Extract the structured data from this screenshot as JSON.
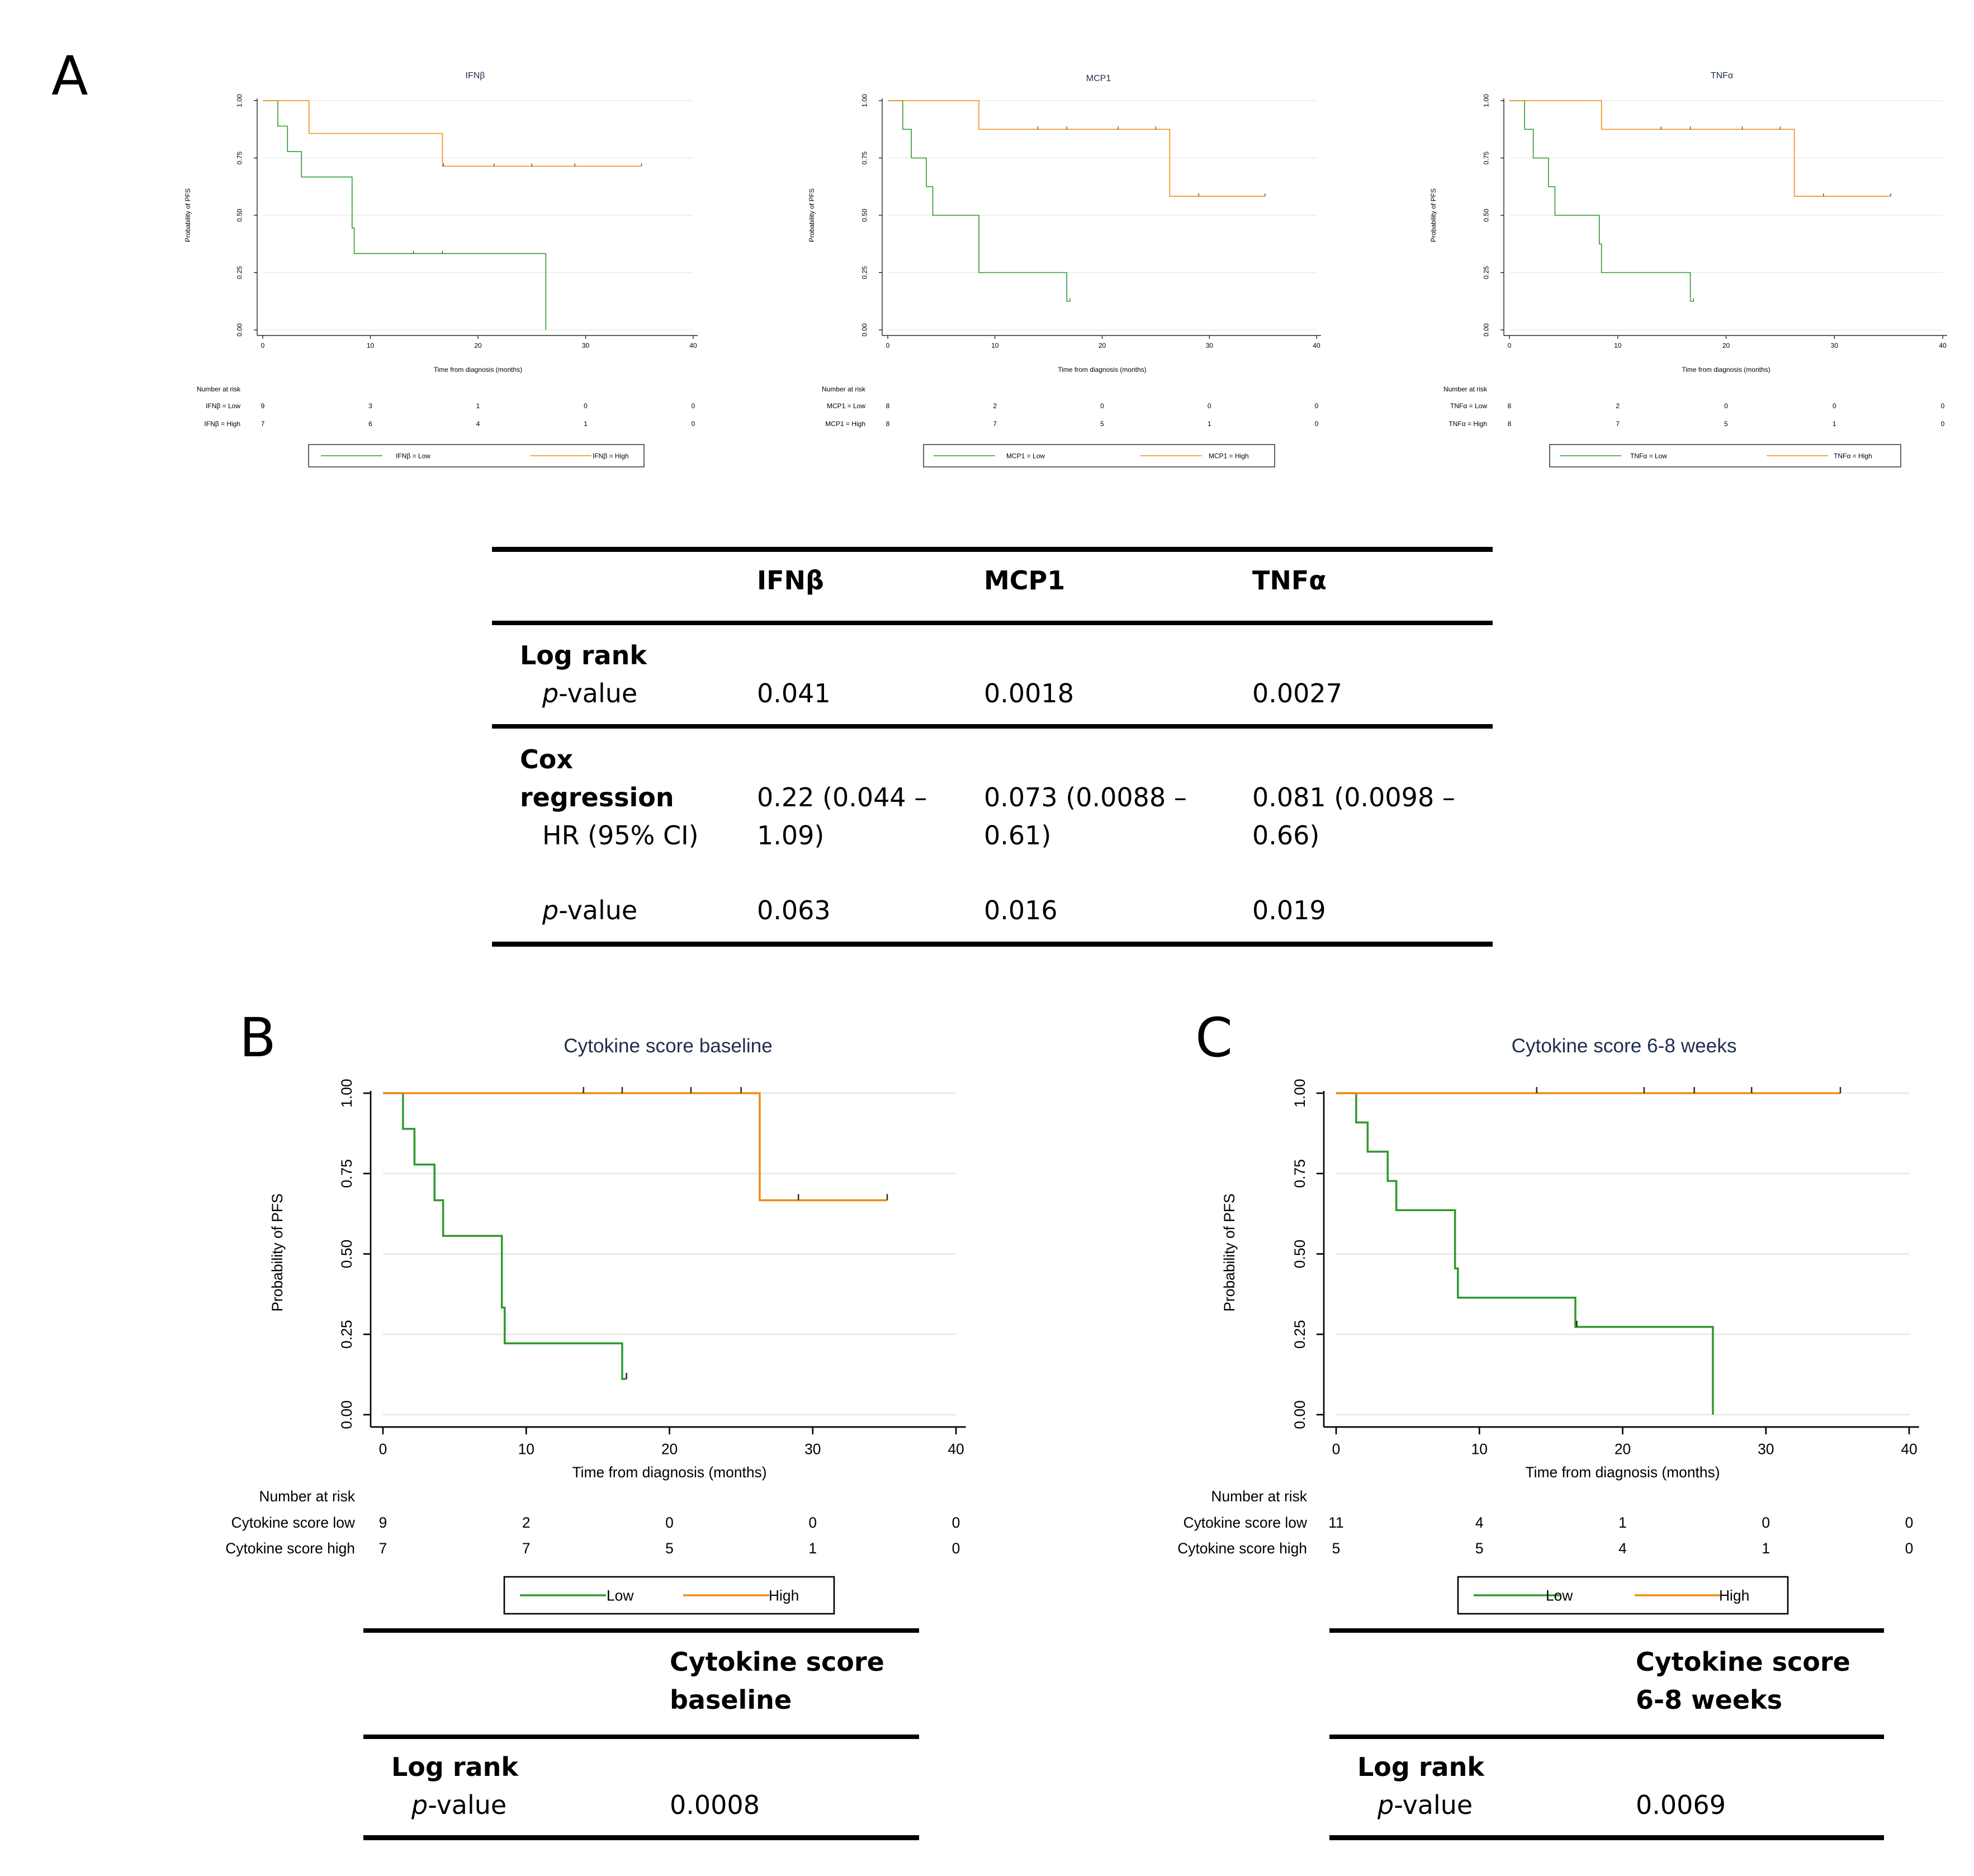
{
  "panel_labels": {
    "a": "A",
    "b": "B",
    "c": "C"
  },
  "chart_data": [
    {
      "type": "line",
      "title": "IFNβ",
      "xlabel": "Time from diagnosis (months)",
      "ylabel": "Probability of PFS",
      "xlim": [
        0,
        40
      ],
      "ylim": [
        0,
        1
      ],
      "x_ticks": [
        "0",
        "10",
        "20",
        "30",
        "40"
      ],
      "y_ticks": [
        "0.00",
        "0.25",
        "0.50",
        "0.75",
        "1.00"
      ],
      "risk_title": "Number at risk",
      "series": [
        {
          "name": "IFNβ = Low",
          "legend": "IFNβ = Low",
          "color": "#2e9a2e",
          "steps": [
            [
              0,
              1
            ],
            [
              1.4,
              0.889
            ],
            [
              2.3,
              0.778
            ],
            [
              3.6,
              0.667
            ],
            [
              8.3,
              0.444
            ],
            [
              8.5,
              0.333
            ],
            [
              26.3,
              0
            ]
          ],
          "censor": [
            [
              14,
              0.333
            ],
            [
              16.7,
              0.333
            ]
          ],
          "risk_label": "IFNβ = Low",
          "risk": [
            "9",
            "3",
            "1",
            "0",
            "0"
          ]
        },
        {
          "name": "IFNβ = High",
          "legend": "IFNβ = High",
          "color": "#f28a14",
          "steps": [
            [
              0,
              1
            ],
            [
              4.3,
              0.857
            ],
            [
              16.7,
              0.714
            ],
            [
              35.2,
              0.714
            ]
          ],
          "censor": [
            [
              16.8,
              0.714
            ],
            [
              21.5,
              0.714
            ],
            [
              25,
              0.714
            ],
            [
              29,
              0.714
            ],
            [
              35.2,
              0.714
            ]
          ],
          "risk_label": "IFNβ = High",
          "risk": [
            "7",
            "6",
            "4",
            "1",
            "0"
          ]
        }
      ]
    },
    {
      "type": "line",
      "title": "MCP1",
      "xlabel": "Time from diagnosis (months)",
      "ylabel": "Probability of PFS",
      "xlim": [
        0,
        40
      ],
      "ylim": [
        0,
        1
      ],
      "x_ticks": [
        "0",
        "10",
        "20",
        "30",
        "40"
      ],
      "y_ticks": [
        "0.00",
        "0.25",
        "0.50",
        "0.75",
        "1.00"
      ],
      "risk_title": "Number at risk",
      "series": [
        {
          "name": "MCP1 = Low",
          "legend": "MCP1 = Low",
          "color": "#2e9a2e",
          "steps": [
            [
              0,
              1
            ],
            [
              1.4,
              0.875
            ],
            [
              2.2,
              0.75
            ],
            [
              3.6,
              0.625
            ],
            [
              4.2,
              0.5
            ],
            [
              8.5,
              0.25
            ],
            [
              16.7,
              0.125
            ],
            [
              17,
              0.125
            ]
          ],
          "censor": [
            [
              17,
              0.125
            ]
          ],
          "risk_label": "MCP1 = Low",
          "risk": [
            "8",
            "2",
            "0",
            "0",
            "0"
          ]
        },
        {
          "name": "MCP1 = High",
          "legend": "MCP1 = High",
          "color": "#f28a14",
          "steps": [
            [
              0,
              1
            ],
            [
              8.5,
              0.875
            ],
            [
              26.3,
              0.583
            ],
            [
              35.2,
              0.583
            ]
          ],
          "censor": [
            [
              14,
              0.875
            ],
            [
              16.7,
              0.875
            ],
            [
              21.5,
              0.875
            ],
            [
              25,
              0.875
            ],
            [
              29,
              0.583
            ],
            [
              35.2,
              0.583
            ]
          ],
          "risk_label": "MCP1 = High",
          "risk": [
            "8",
            "7",
            "5",
            "1",
            "0"
          ]
        }
      ]
    },
    {
      "type": "line",
      "title": "TNFα",
      "xlabel": "Time from diagnosis (months)",
      "ylabel": "Probability of PFS",
      "xlim": [
        0,
        40
      ],
      "ylim": [
        0,
        1
      ],
      "x_ticks": [
        "0",
        "10",
        "20",
        "30",
        "40"
      ],
      "y_ticks": [
        "0.00",
        "0.25",
        "0.50",
        "0.75",
        "1.00"
      ],
      "risk_title": "Number at risk",
      "series": [
        {
          "name": "TNFα = Low",
          "legend": "TNFα = Low",
          "color": "#2e9a2e",
          "steps": [
            [
              0,
              1
            ],
            [
              1.4,
              0.875
            ],
            [
              2.2,
              0.75
            ],
            [
              3.6,
              0.625
            ],
            [
              4.2,
              0.5
            ],
            [
              8.3,
              0.375
            ],
            [
              8.5,
              0.25
            ],
            [
              16.7,
              0.125
            ],
            [
              17,
              0.125
            ]
          ],
          "censor": [
            [
              17,
              0.125
            ]
          ],
          "risk_label": "TNFα = Low",
          "risk": [
            "8",
            "2",
            "0",
            "0",
            "0"
          ]
        },
        {
          "name": "TNFα = High",
          "legend": "TNFα = High",
          "color": "#f28a14",
          "steps": [
            [
              0,
              1
            ],
            [
              8.5,
              0.875
            ],
            [
              26.3,
              0.583
            ],
            [
              35.2,
              0.583
            ]
          ],
          "censor": [
            [
              14,
              0.875
            ],
            [
              16.7,
              0.875
            ],
            [
              21.5,
              0.875
            ],
            [
              25,
              0.875
            ],
            [
              29,
              0.583
            ],
            [
              35.2,
              0.583
            ]
          ],
          "risk_label": "TNFα = High",
          "risk": [
            "8",
            "7",
            "5",
            "1",
            "0"
          ]
        }
      ]
    },
    {
      "type": "line",
      "title": "Cytokine score baseline",
      "xlabel": "Time from diagnosis (months)",
      "ylabel": "Probability of PFS",
      "xlim": [
        0,
        40
      ],
      "ylim": [
        0,
        1
      ],
      "x_ticks": [
        "0",
        "10",
        "20",
        "30",
        "40"
      ],
      "y_ticks": [
        "0.00",
        "0.25",
        "0.50",
        "0.75",
        "1.00"
      ],
      "risk_title": "Number at risk",
      "series": [
        {
          "name": "Low",
          "legend": "Low",
          "color": "#2e9a2e",
          "steps": [
            [
              0,
              1
            ],
            [
              1.4,
              0.889
            ],
            [
              2.2,
              0.778
            ],
            [
              3.6,
              0.667
            ],
            [
              4.2,
              0.556
            ],
            [
              8.3,
              0.333
            ],
            [
              8.5,
              0.222
            ],
            [
              16.7,
              0.111
            ],
            [
              17,
              0.111
            ]
          ],
          "censor": [
            [
              17,
              0.111
            ]
          ],
          "risk_label": "Cytokine score low",
          "risk": [
            "9",
            "2",
            "0",
            "0",
            "0"
          ]
        },
        {
          "name": "High",
          "legend": "High",
          "color": "#f28a14",
          "steps": [
            [
              0,
              1
            ],
            [
              26.3,
              0.667
            ],
            [
              35.2,
              0.667
            ]
          ],
          "censor": [
            [
              14,
              1
            ],
            [
              16.7,
              1
            ],
            [
              21.5,
              1
            ],
            [
              25,
              1
            ],
            [
              29,
              0.667
            ],
            [
              35.2,
              0.667
            ]
          ],
          "risk_label": "Cytokine score high",
          "risk": [
            "7",
            "7",
            "5",
            "1",
            "0"
          ]
        }
      ]
    },
    {
      "type": "line",
      "title": "Cytokine score 6-8 weeks",
      "xlabel": "Time from diagnosis (months)",
      "ylabel": "Probability of PFS",
      "xlim": [
        0,
        40
      ],
      "ylim": [
        0,
        1
      ],
      "x_ticks": [
        "0",
        "10",
        "20",
        "30",
        "40"
      ],
      "y_ticks": [
        "0.00",
        "0.25",
        "0.50",
        "0.75",
        "1.00"
      ],
      "risk_title": "Number at risk",
      "series": [
        {
          "name": "Low",
          "legend": "Low",
          "color": "#2e9a2e",
          "steps": [
            [
              0,
              1
            ],
            [
              1.4,
              0.909
            ],
            [
              2.2,
              0.818
            ],
            [
              3.6,
              0.727
            ],
            [
              4.2,
              0.636
            ],
            [
              8.3,
              0.455
            ],
            [
              8.5,
              0.364
            ],
            [
              16.7,
              0.273
            ],
            [
              26.3,
              0
            ]
          ],
          "censor": [
            [
              16.8,
              0.273
            ]
          ],
          "risk_label": "Cytokine score low",
          "risk": [
            "11",
            "4",
            "1",
            "0",
            "0"
          ]
        },
        {
          "name": "High",
          "legend": "High",
          "color": "#f28a14",
          "steps": [
            [
              0,
              1
            ],
            [
              35.2,
              1
            ]
          ],
          "censor": [
            [
              14,
              1
            ],
            [
              21.5,
              1
            ],
            [
              25,
              1
            ],
            [
              29,
              1
            ],
            [
              35.2,
              1
            ]
          ],
          "risk_label": "Cytokine score high",
          "risk": [
            "5",
            "5",
            "4",
            "1",
            "0"
          ]
        }
      ]
    }
  ],
  "table_a": {
    "headers": [
      "IFNβ",
      "MCP1",
      "TNFα"
    ],
    "logrank_label": "Log rank",
    "p_value_label": "p",
    "p_value_suffix": "-value",
    "logrank_p": [
      "0.041",
      "0.0018",
      "0.0027"
    ],
    "cox_label_1": "Cox",
    "cox_label_2": "regression",
    "hr_label": "HR (95% CI)",
    "hr_line1": [
      "0.22 (0.044 –",
      "0.073 (0.0088 –",
      "0.081 (0.0098 –"
    ],
    "hr_line2": [
      "1.09)",
      "0.61)",
      "0.66)"
    ],
    "cox_p": [
      "0.063",
      "0.016",
      "0.019"
    ]
  },
  "table_b": {
    "header_1": "Cytokine score",
    "header_2": "baseline",
    "logrank_label": "Log rank",
    "p_value_label": "p",
    "p_value_suffix": "-value",
    "p": "0.0008"
  },
  "table_c": {
    "header_1": "Cytokine score",
    "header_2": "6-8 weeks",
    "logrank_label": "Log rank",
    "p_value_label": "p",
    "p_value_suffix": "-value",
    "p": "0.0069"
  }
}
